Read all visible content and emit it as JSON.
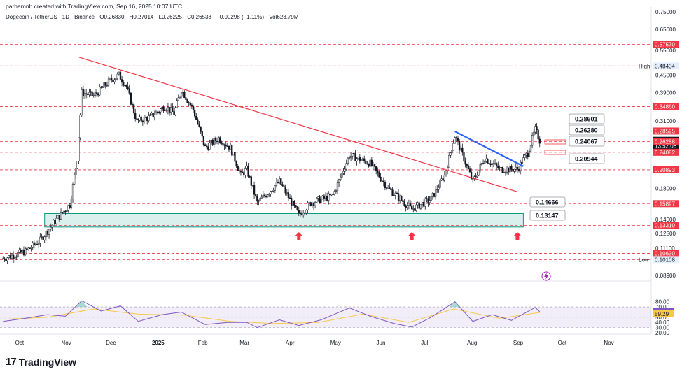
{
  "header": {
    "credit": "parhamnb created with TradingView.com, Sep 16, 2025 10:07 UTC",
    "symbol": "Dogecoin / TetherUS · 1D · Binance",
    "open": "O0.26830",
    "high": "H0.27014",
    "low": "L0.26225",
    "close": "C0.26533",
    "change": "−0.00298 (−1.11%)",
    "volume": "Vol623.79M"
  },
  "brand": {
    "name": "TradingView"
  },
  "colors": {
    "up": "#131722",
    "red_line": "#f23645",
    "blue_line": "#2962ff",
    "zone": "#089981",
    "rsi": "#7e57c2",
    "rsi_ma": "#f7c948",
    "dashed": "#f23645"
  },
  "chart_data": [
    {
      "type": "candlestick",
      "title": "Dogecoin / TetherUS · 1D · Binance",
      "y_scale": "log",
      "ylim": [
        0.085,
        0.78
      ],
      "x_labels": [
        "Oct",
        "Nov",
        "Dec",
        "2025",
        "Feb",
        "Mar",
        "Apr",
        "May",
        "Jun",
        "Jul",
        "Aug",
        "Sep",
        "Oct",
        "Nov"
      ],
      "price_axis_ticks": [
        "0.75000",
        "0.65000",
        "0.55000",
        "0.45000",
        "0.39000",
        "0.31000",
        "0.21000",
        "0.18000",
        "0.14000",
        "0.12500",
        "0.11100",
        "0.08900"
      ],
      "horizontal_levels": [
        0.5757,
        0.4843,
        0.3486,
        0.28595,
        0.26288,
        0.24082,
        0.20893,
        0.15897,
        0.1331,
        0.1063,
        0.10108
      ],
      "axis_badges": [
        {
          "label": "",
          "value": "0.57570",
          "style": "red"
        },
        {
          "label": "High",
          "value": "0.48434",
          "style": "blue"
        },
        {
          "label": "",
          "value": "0.34860",
          "style": "red"
        },
        {
          "label": "",
          "value": "0.28595",
          "style": "red"
        },
        {
          "label": "",
          "value": "0.26533",
          "style": "dark",
          "extra": "13:52:08"
        },
        {
          "label": "",
          "value": "0.26288",
          "style": "red"
        },
        {
          "label": "",
          "value": "0.24082",
          "style": "red"
        },
        {
          "label": "",
          "value": "0.20893",
          "style": "red"
        },
        {
          "label": "",
          "value": "0.15897",
          "style": "red"
        },
        {
          "label": "",
          "value": "0.13310",
          "style": "red"
        },
        {
          "label": "",
          "value": "0.10630",
          "style": "red"
        },
        {
          "label": "Low",
          "value": "0.10108",
          "style": "blue"
        }
      ],
      "annotation_boxes": [
        "0.28601",
        "0.26280",
        "0.24067",
        "0.20944",
        "0.14666",
        "0.13147"
      ],
      "zone": {
        "low": 0.1315,
        "high": 0.1467
      },
      "trendlines": [
        {
          "name": "descending resistance",
          "color": "red",
          "from": {
            "date": "2024-11-10",
            "price": 0.52
          },
          "to": {
            "date": "2025-09-01",
            "price": 0.175
          }
        },
        {
          "name": "local resistance",
          "color": "blue",
          "from": {
            "date": "2025-07-21",
            "price": 0.285
          },
          "to": {
            "date": "2025-09-05",
            "price": 0.215
          }
        }
      ],
      "arrows": [
        {
          "date": "2025-04-07"
        },
        {
          "date": "2025-06-22"
        },
        {
          "date": "2025-09-01"
        }
      ],
      "close_path": [
        {
          "date": "2024-09-20",
          "close": 0.102
        },
        {
          "date": "2024-10-05",
          "close": 0.108
        },
        {
          "date": "2024-10-15",
          "close": 0.118
        },
        {
          "date": "2024-10-25",
          "close": 0.138
        },
        {
          "date": "2024-11-04",
          "close": 0.158
        },
        {
          "date": "2024-11-09",
          "close": 0.23
        },
        {
          "date": "2024-11-12",
          "close": 0.39
        },
        {
          "date": "2024-11-20",
          "close": 0.38
        },
        {
          "date": "2024-12-01",
          "close": 0.43
        },
        {
          "date": "2024-12-07",
          "close": 0.45
        },
        {
          "date": "2024-12-12",
          "close": 0.41
        },
        {
          "date": "2024-12-19",
          "close": 0.31
        },
        {
          "date": "2024-12-28",
          "close": 0.32
        },
        {
          "date": "2025-01-07",
          "close": 0.35
        },
        {
          "date": "2025-01-13",
          "close": 0.33
        },
        {
          "date": "2025-01-18",
          "close": 0.4
        },
        {
          "date": "2025-01-26",
          "close": 0.34
        },
        {
          "date": "2025-02-03",
          "close": 0.25
        },
        {
          "date": "2025-02-12",
          "close": 0.27
        },
        {
          "date": "2025-02-20",
          "close": 0.25
        },
        {
          "date": "2025-02-27",
          "close": 0.2
        },
        {
          "date": "2025-03-03",
          "close": 0.21
        },
        {
          "date": "2025-03-10",
          "close": 0.16
        },
        {
          "date": "2025-03-25",
          "close": 0.19
        },
        {
          "date": "2025-04-07",
          "close": 0.145
        },
        {
          "date": "2025-04-15",
          "close": 0.16
        },
        {
          "date": "2025-04-30",
          "close": 0.17
        },
        {
          "date": "2025-05-11",
          "close": 0.235
        },
        {
          "date": "2025-05-25",
          "close": 0.22
        },
        {
          "date": "2025-06-06",
          "close": 0.18
        },
        {
          "date": "2025-06-22",
          "close": 0.152
        },
        {
          "date": "2025-07-05",
          "close": 0.165
        },
        {
          "date": "2025-07-14",
          "close": 0.2
        },
        {
          "date": "2025-07-21",
          "close": 0.275
        },
        {
          "date": "2025-08-02",
          "close": 0.19
        },
        {
          "date": "2025-08-10",
          "close": 0.23
        },
        {
          "date": "2025-08-20",
          "close": 0.21
        },
        {
          "date": "2025-09-01",
          "close": 0.21
        },
        {
          "date": "2025-09-08",
          "close": 0.24
        },
        {
          "date": "2025-09-13",
          "close": 0.29
        },
        {
          "date": "2025-09-16",
          "close": 0.265
        }
      ]
    },
    {
      "type": "line",
      "title": "",
      "ylim": [
        20,
        85
      ],
      "y_ticks": [
        "80.00",
        "70.00",
        "60.00",
        "50.00",
        "40.00",
        "30.00",
        "20.00"
      ],
      "series": [
        {
          "values_points": [
            {
              "date": "2024-09-20",
              "v": 42
            },
            {
              "date": "2024-10-05",
              "v": 48
            },
            {
              "date": "2024-10-20",
              "v": 55
            },
            {
              "date": "2024-11-01",
              "v": 52
            },
            {
              "date": "2024-11-12",
              "v": 82
            },
            {
              "date": "2024-11-25",
              "v": 62
            },
            {
              "date": "2024-12-08",
              "v": 72
            },
            {
              "date": "2024-12-20",
              "v": 42
            },
            {
              "date": "2025-01-05",
              "v": 55
            },
            {
              "date": "2025-01-18",
              "v": 60
            },
            {
              "date": "2025-02-03",
              "v": 36
            },
            {
              "date": "2025-02-18",
              "v": 40
            },
            {
              "date": "2025-03-03",
              "v": 40
            },
            {
              "date": "2025-03-10",
              "v": 30
            },
            {
              "date": "2025-03-25",
              "v": 45
            },
            {
              "date": "2025-04-07",
              "v": 34
            },
            {
              "date": "2025-04-22",
              "v": 45
            },
            {
              "date": "2025-05-11",
              "v": 68
            },
            {
              "date": "2025-05-25",
              "v": 52
            },
            {
              "date": "2025-06-10",
              "v": 38
            },
            {
              "date": "2025-06-22",
              "v": 31
            },
            {
              "date": "2025-07-05",
              "v": 50
            },
            {
              "date": "2025-07-21",
              "v": 80
            },
            {
              "date": "2025-08-02",
              "v": 42
            },
            {
              "date": "2025-08-15",
              "v": 55
            },
            {
              "date": "2025-08-28",
              "v": 44
            },
            {
              "date": "2025-09-13",
              "v": 69
            },
            {
              "date": "2025-09-16",
              "v": 60.74
            }
          ]
        },
        {
          "values_points": [
            {
              "date": "2024-09-20",
              "v": 46
            },
            {
              "date": "2024-10-20",
              "v": 50
            },
            {
              "date": "2024-11-20",
              "v": 66
            },
            {
              "date": "2024-12-20",
              "v": 56
            },
            {
              "date": "2025-01-20",
              "v": 54
            },
            {
              "date": "2025-02-20",
              "v": 42
            },
            {
              "date": "2025-03-20",
              "v": 38
            },
            {
              "date": "2025-04-20",
              "v": 40
            },
            {
              "date": "2025-05-20",
              "v": 56
            },
            {
              "date": "2025-06-20",
              "v": 40
            },
            {
              "date": "2025-07-20",
              "v": 66
            },
            {
              "date": "2025-08-20",
              "v": 48
            },
            {
              "date": "2025-09-16",
              "v": 59.29
            }
          ]
        }
      ],
      "badges": [
        "60.74",
        "59.29"
      ]
    }
  ]
}
